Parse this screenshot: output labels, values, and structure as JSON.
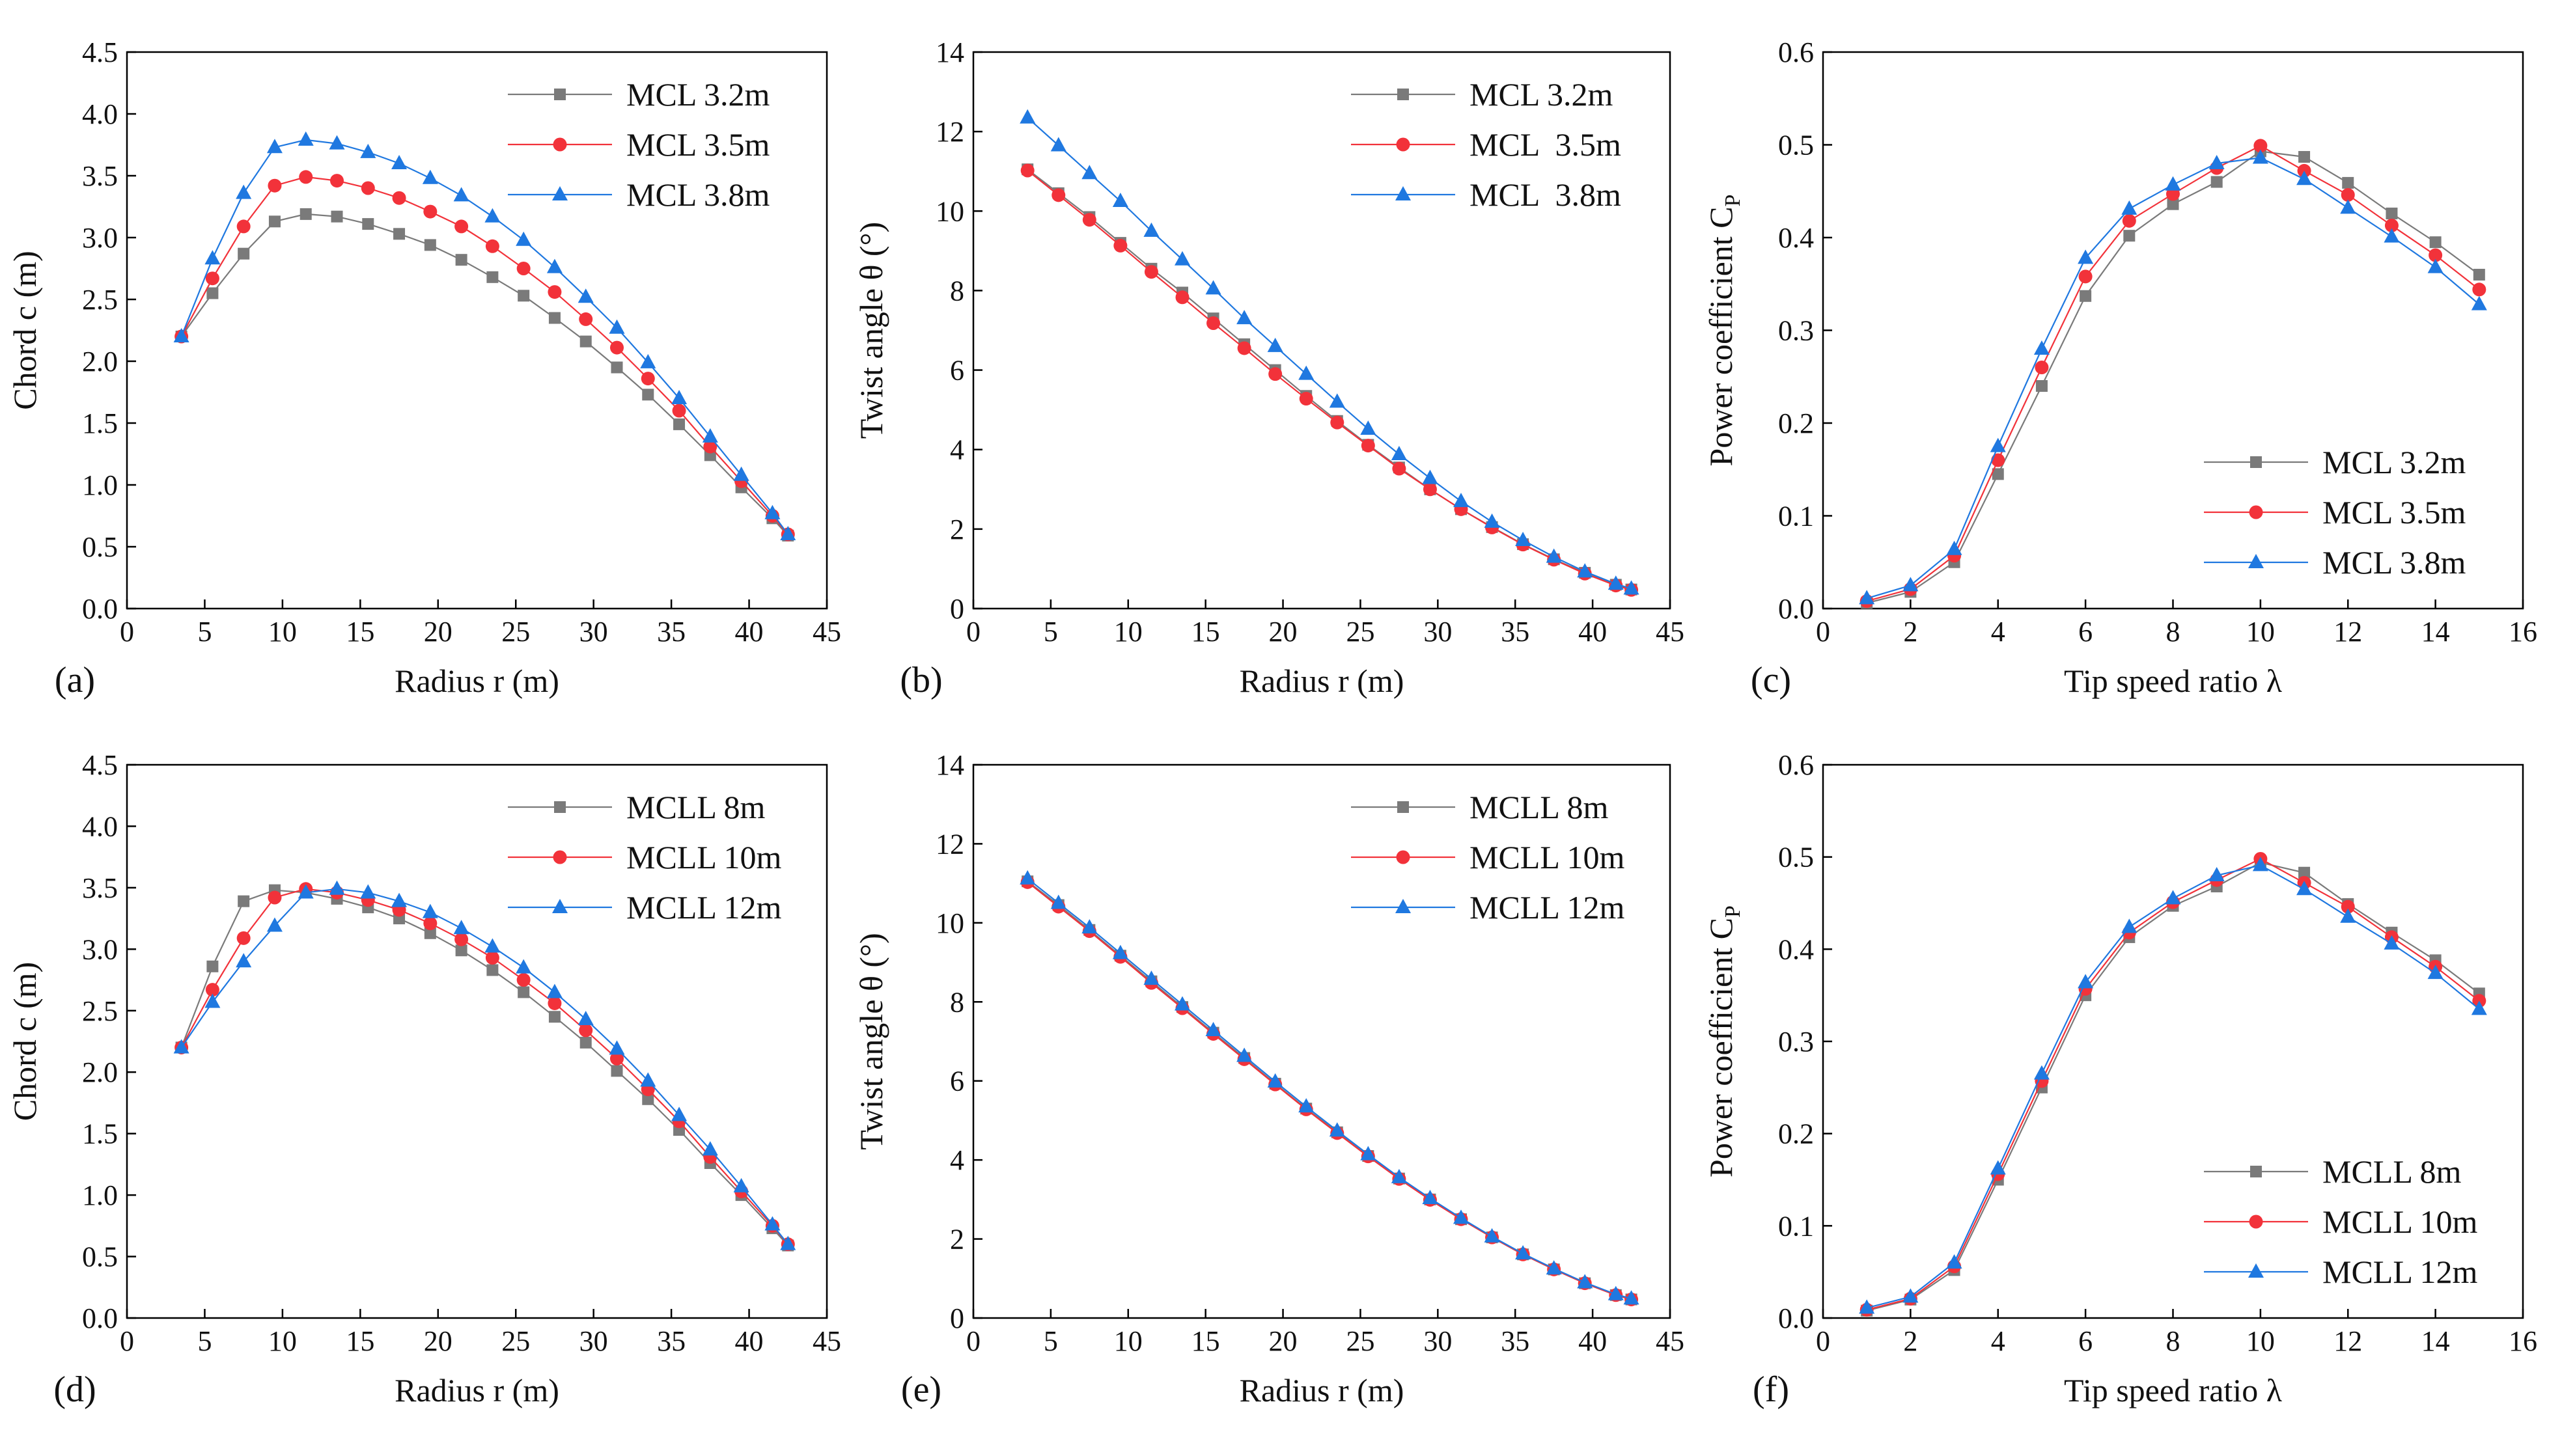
{
  "colors": {
    "s1": "#7a7a7a",
    "s2": "#f2323a",
    "s3": "#1f78e0",
    "axis": "#000000"
  },
  "chart_data": [
    {
      "type": "line",
      "panel_label": "(a)",
      "xlabel": "Radius r (m)",
      "ylabel": "Chord c (m)",
      "xlim": [
        0,
        45
      ],
      "ylim": [
        0,
        4.5
      ],
      "xticks": [
        0,
        5,
        10,
        15,
        20,
        25,
        30,
        35,
        40,
        45
      ],
      "yticks": [
        0.0,
        0.5,
        1.0,
        1.5,
        2.0,
        2.5,
        3.0,
        3.5,
        4.0,
        4.5
      ],
      "ytick_decimals": 1,
      "legend": "top-right",
      "x": [
        3.5,
        5.5,
        7.5,
        9.5,
        11.5,
        13.5,
        15.5,
        17.5,
        19.5,
        21.5,
        23.5,
        25.5,
        27.5,
        29.5,
        31.5,
        33.5,
        35.5,
        37.5,
        39.5,
        41.5,
        42.5
      ],
      "series": [
        {
          "name": "MCL 3.2m",
          "marker": "square",
          "values": [
            2.2,
            2.55,
            2.87,
            3.13,
            3.19,
            3.17,
            3.11,
            3.03,
            2.94,
            2.82,
            2.68,
            2.53,
            2.35,
            2.16,
            1.95,
            1.73,
            1.49,
            1.24,
            0.98,
            0.73,
            0.59
          ]
        },
        {
          "name": "MCL 3.5m",
          "marker": "circle",
          "values": [
            2.2,
            2.67,
            3.09,
            3.42,
            3.49,
            3.46,
            3.4,
            3.32,
            3.21,
            3.09,
            2.93,
            2.75,
            2.56,
            2.34,
            2.11,
            1.86,
            1.6,
            1.31,
            1.03,
            0.75,
            0.6
          ]
        },
        {
          "name": "MCL 3.8m",
          "marker": "triangle",
          "values": [
            2.2,
            2.83,
            3.36,
            3.73,
            3.79,
            3.76,
            3.69,
            3.6,
            3.48,
            3.34,
            3.17,
            2.98,
            2.76,
            2.52,
            2.27,
            1.99,
            1.7,
            1.39,
            1.08,
            0.77,
            0.6
          ]
        }
      ]
    },
    {
      "type": "line",
      "panel_label": "(b)",
      "xlabel": "Radius r (m)",
      "ylabel": "Twist angle θ (°)",
      "xlim": [
        0,
        45
      ],
      "ylim": [
        0,
        14
      ],
      "xticks": [
        0,
        5,
        10,
        15,
        20,
        25,
        30,
        35,
        40,
        45
      ],
      "yticks": [
        0,
        2,
        4,
        6,
        8,
        10,
        12,
        14
      ],
      "ytick_decimals": 0,
      "legend": "top-right",
      "x": [
        3.5,
        5.5,
        7.5,
        9.5,
        11.5,
        13.5,
        15.5,
        17.5,
        19.5,
        21.5,
        23.5,
        25.5,
        27.5,
        29.5,
        31.5,
        33.5,
        35.5,
        37.5,
        39.5,
        41.5,
        42.5
      ],
      "series": [
        {
          "name": "MCL 3.2m",
          "marker": "square",
          "values": [
            11.05,
            10.45,
            9.85,
            9.2,
            8.55,
            7.95,
            7.3,
            6.65,
            6.0,
            5.35,
            4.72,
            4.12,
            3.55,
            3.0,
            2.5,
            2.05,
            1.62,
            1.24,
            0.9,
            0.6,
            0.48
          ]
        },
        {
          "name": "MCL  3.5m",
          "marker": "circle",
          "values": [
            11.02,
            10.4,
            9.78,
            9.13,
            8.47,
            7.83,
            7.18,
            6.55,
            5.9,
            5.28,
            4.68,
            4.1,
            3.52,
            3.0,
            2.5,
            2.04,
            1.61,
            1.23,
            0.88,
            0.58,
            0.47
          ]
        },
        {
          "name": "MCL  3.8m",
          "marker": "triangle",
          "values": [
            12.35,
            11.65,
            10.95,
            10.25,
            9.5,
            8.78,
            8.05,
            7.3,
            6.6,
            5.9,
            5.2,
            4.52,
            3.88,
            3.28,
            2.7,
            2.18,
            1.72,
            1.3,
            0.93,
            0.62,
            0.5
          ]
        }
      ]
    },
    {
      "type": "line",
      "panel_label": "(c)",
      "xlabel": "Tip speed ratio λ",
      "ylabel": "Power coefficient C",
      "ylabel_sub": "P",
      "xlim": [
        0,
        16
      ],
      "ylim": [
        0,
        0.6
      ],
      "xticks": [
        0,
        2,
        4,
        6,
        8,
        10,
        12,
        14,
        16
      ],
      "yticks": [
        0.0,
        0.1,
        0.2,
        0.3,
        0.4,
        0.5,
        0.6
      ],
      "ytick_decimals": 1,
      "legend": "bottom-right",
      "x": [
        1,
        2,
        3,
        4,
        5,
        6,
        7,
        8,
        9,
        10,
        11,
        12,
        13,
        14,
        15
      ],
      "series": [
        {
          "name": "MCL 3.2m",
          "marker": "square",
          "values": [
            0.006,
            0.018,
            0.05,
            0.145,
            0.24,
            0.337,
            0.402,
            0.436,
            0.46,
            0.493,
            0.487,
            0.459,
            0.426,
            0.395,
            0.36
          ]
        },
        {
          "name": "MCL 3.5m",
          "marker": "circle",
          "values": [
            0.008,
            0.021,
            0.057,
            0.16,
            0.26,
            0.358,
            0.418,
            0.447,
            0.475,
            0.499,
            0.472,
            0.446,
            0.413,
            0.381,
            0.344
          ]
        },
        {
          "name": "MCL 3.8m",
          "marker": "triangle",
          "values": [
            0.011,
            0.025,
            0.064,
            0.175,
            0.28,
            0.378,
            0.431,
            0.457,
            0.48,
            0.486,
            0.463,
            0.432,
            0.401,
            0.368,
            0.328
          ]
        }
      ]
    },
    {
      "type": "line",
      "panel_label": "(d)",
      "xlabel": "Radius r (m)",
      "ylabel": "Chord c (m)",
      "xlim": [
        0,
        45
      ],
      "ylim": [
        0,
        4.5
      ],
      "xticks": [
        0,
        5,
        10,
        15,
        20,
        25,
        30,
        35,
        40,
        45
      ],
      "yticks": [
        0.0,
        0.5,
        1.0,
        1.5,
        2.0,
        2.5,
        3.0,
        3.5,
        4.0,
        4.5
      ],
      "ytick_decimals": 1,
      "legend": "top-right",
      "x": [
        3.5,
        5.5,
        7.5,
        9.5,
        11.5,
        13.5,
        15.5,
        17.5,
        19.5,
        21.5,
        23.5,
        25.5,
        27.5,
        29.5,
        31.5,
        33.5,
        35.5,
        37.5,
        39.5,
        41.5,
        42.5
      ],
      "series": [
        {
          "name": "MCLL 8m",
          "marker": "square",
          "values": [
            2.2,
            2.86,
            3.39,
            3.48,
            3.46,
            3.41,
            3.34,
            3.25,
            3.13,
            2.99,
            2.83,
            2.65,
            2.45,
            2.24,
            2.01,
            1.78,
            1.53,
            1.26,
            1.0,
            0.73,
            0.59
          ]
        },
        {
          "name": "MCLL 10m",
          "marker": "circle",
          "values": [
            2.2,
            2.67,
            3.09,
            3.42,
            3.49,
            3.46,
            3.4,
            3.32,
            3.21,
            3.08,
            2.93,
            2.75,
            2.56,
            2.34,
            2.11,
            1.86,
            1.6,
            1.31,
            1.03,
            0.75,
            0.6
          ]
        },
        {
          "name": "MCLL 12m",
          "marker": "triangle",
          "values": [
            2.2,
            2.57,
            2.9,
            3.19,
            3.46,
            3.49,
            3.46,
            3.39,
            3.3,
            3.17,
            3.02,
            2.85,
            2.65,
            2.43,
            2.19,
            1.93,
            1.65,
            1.37,
            1.07,
            0.76,
            0.6
          ]
        }
      ]
    },
    {
      "type": "line",
      "panel_label": "(e)",
      "xlabel": "Radius r (m)",
      "ylabel": "Twist angle θ (°)",
      "xlim": [
        0,
        45
      ],
      "ylim": [
        0,
        14
      ],
      "xticks": [
        0,
        5,
        10,
        15,
        20,
        25,
        30,
        35,
        40,
        45
      ],
      "yticks": [
        0,
        2,
        4,
        6,
        8,
        10,
        12,
        14
      ],
      "ytick_decimals": 0,
      "legend": "top-right",
      "x": [
        3.5,
        5.5,
        7.5,
        9.5,
        11.5,
        13.5,
        15.5,
        17.5,
        19.5,
        21.5,
        23.5,
        25.5,
        27.5,
        29.5,
        31.5,
        33.5,
        35.5,
        37.5,
        39.5,
        41.5,
        42.5
      ],
      "series": [
        {
          "name": "MCLL 8m",
          "marker": "square",
          "values": [
            11.05,
            10.45,
            9.82,
            9.17,
            8.52,
            7.87,
            7.22,
            6.58,
            5.93,
            5.3,
            4.7,
            4.1,
            3.53,
            3.0,
            2.5,
            2.04,
            1.61,
            1.23,
            0.88,
            0.58,
            0.47
          ]
        },
        {
          "name": "MCLL 10m",
          "marker": "circle",
          "values": [
            11.03,
            10.41,
            9.79,
            9.14,
            8.48,
            7.84,
            7.19,
            6.55,
            5.91,
            5.28,
            4.68,
            4.09,
            3.52,
            2.99,
            2.5,
            2.04,
            1.61,
            1.23,
            0.88,
            0.58,
            0.47
          ]
        },
        {
          "name": "MCLL 12m",
          "marker": "triangle",
          "values": [
            11.12,
            10.5,
            9.88,
            9.23,
            8.58,
            7.93,
            7.28,
            6.63,
            5.98,
            5.35,
            4.74,
            4.14,
            3.56,
            3.03,
            2.53,
            2.06,
            1.63,
            1.25,
            0.9,
            0.6,
            0.49
          ]
        }
      ]
    },
    {
      "type": "line",
      "panel_label": "(f)",
      "xlabel": "Tip speed ratio λ",
      "ylabel": "Power coefficient C",
      "ylabel_sub": "P",
      "xlim": [
        0,
        16
      ],
      "ylim": [
        0,
        0.6
      ],
      "xticks": [
        0,
        2,
        4,
        6,
        8,
        10,
        12,
        14,
        16
      ],
      "yticks": [
        0.0,
        0.1,
        0.2,
        0.3,
        0.4,
        0.5,
        0.6
      ],
      "ytick_decimals": 1,
      "legend": "bottom-right",
      "x": [
        1,
        2,
        3,
        4,
        5,
        6,
        7,
        8,
        9,
        10,
        11,
        12,
        13,
        14,
        15
      ],
      "series": [
        {
          "name": "MCLL 8m",
          "marker": "square",
          "values": [
            0.008,
            0.02,
            0.052,
            0.15,
            0.25,
            0.35,
            0.413,
            0.447,
            0.468,
            0.494,
            0.483,
            0.449,
            0.418,
            0.388,
            0.352
          ]
        },
        {
          "name": "MCLL 10m",
          "marker": "circle",
          "values": [
            0.009,
            0.021,
            0.056,
            0.156,
            0.257,
            0.357,
            0.418,
            0.451,
            0.475,
            0.498,
            0.472,
            0.446,
            0.413,
            0.381,
            0.344
          ]
        },
        {
          "name": "MCLL 12m",
          "marker": "triangle",
          "values": [
            0.011,
            0.023,
            0.06,
            0.162,
            0.265,
            0.364,
            0.424,
            0.455,
            0.48,
            0.491,
            0.465,
            0.435,
            0.406,
            0.374,
            0.335
          ]
        }
      ]
    }
  ]
}
